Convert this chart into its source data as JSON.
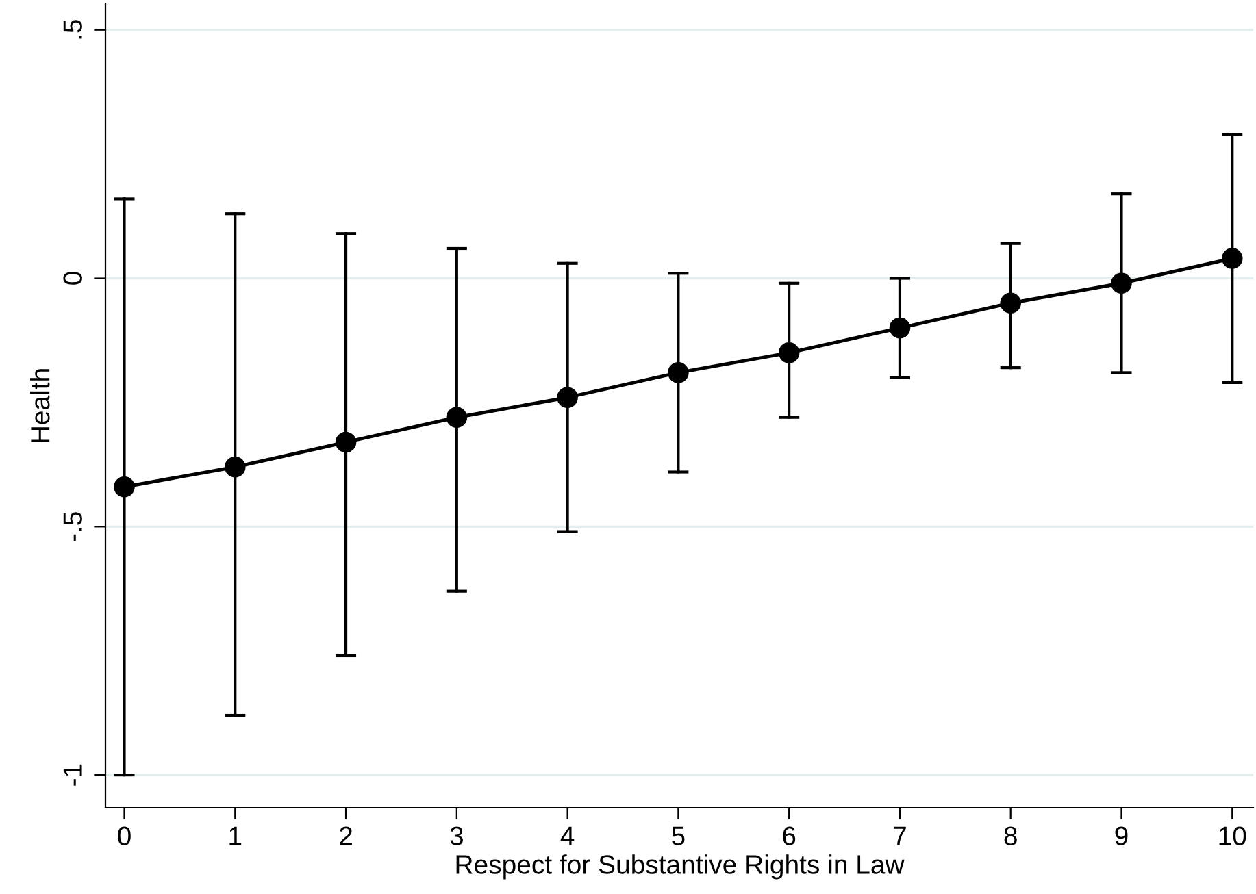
{
  "chart_data": {
    "type": "line",
    "xlabel": "Respect for Substantive Rights in Law",
    "ylabel": "Health",
    "x": [
      0,
      1,
      2,
      3,
      4,
      5,
      6,
      7,
      8,
      9,
      10
    ],
    "series": [
      {
        "color": "#000000",
        "values": [
          -0.42,
          -0.38,
          -0.33,
          -0.28,
          -0.24,
          -0.19,
          -0.15,
          -0.1,
          -0.05,
          -0.01,
          0.04
        ],
        "errors": [
          [
            -1.0,
            0.16
          ],
          [
            -0.88,
            0.13
          ],
          [
            -0.76,
            0.09
          ],
          [
            -0.63,
            0.06
          ],
          [
            -0.51,
            0.03
          ],
          [
            -0.39,
            0.01
          ],
          [
            -0.28,
            -0.01
          ],
          [
            -0.2,
            0.0
          ],
          [
            -0.18,
            0.07
          ],
          [
            -0.19,
            0.17
          ],
          [
            -0.21,
            0.29
          ]
        ]
      }
    ],
    "xlim": [
      -0.17,
      10.19
    ],
    "ylim": [
      -1.066,
      0.552
    ],
    "xticks": [
      0,
      1,
      2,
      3,
      4,
      5,
      6,
      7,
      8,
      9,
      10
    ],
    "yticks": [
      {
        "value": 0.5,
        "label": ".5"
      },
      0,
      {
        "value": -0.5,
        "label": "-.5"
      },
      -1
    ],
    "grid": "y",
    "marker": "circle",
    "line_style": "solid",
    "legend": false
  }
}
